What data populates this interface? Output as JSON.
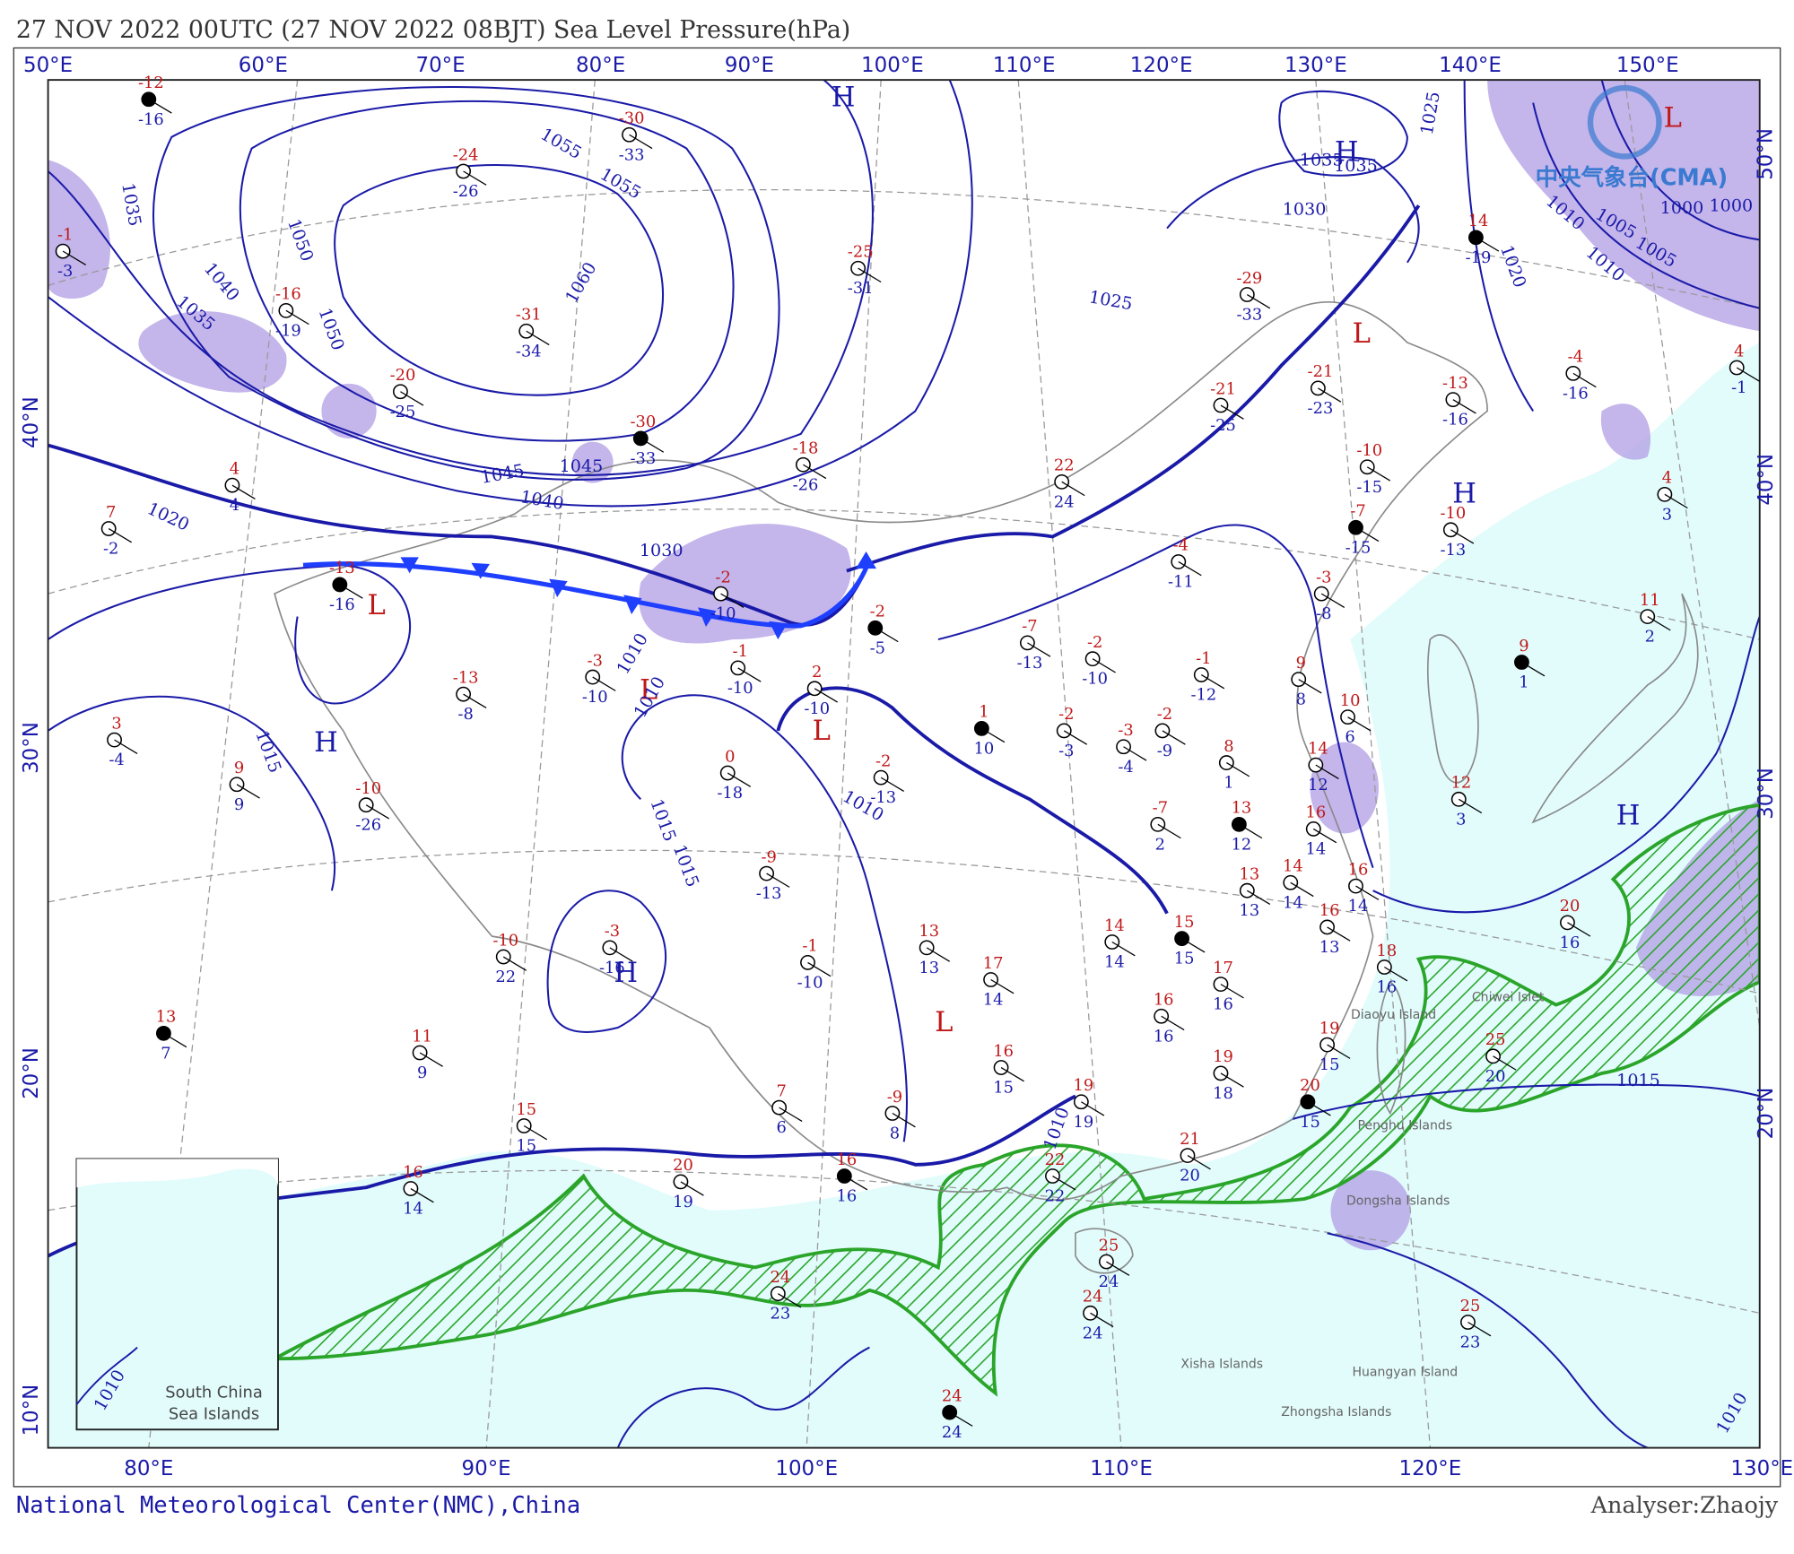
{
  "header": {
    "title": "27 NOV 2022 00UTC  (27 NOV 2022 08BJT) Sea Level Pressure(hPa)"
  },
  "top_axis": [
    "50°E",
    "60°E",
    "70°E",
    "80°E",
    "90°E",
    "100°E",
    "110°E",
    "120°E",
    "130°E",
    "140°E",
    "150°E"
  ],
  "bottom_axis": [
    "80°E",
    "90°E",
    "100°E",
    "110°E",
    "120°E",
    "130°E"
  ],
  "left_axis": [
    "40°N",
    "30°N",
    "20°N",
    "10°N"
  ],
  "right_axis": [
    "50°N",
    "40°N",
    "30°N",
    "20°N"
  ],
  "logo": "中央气象台(CMA)",
  "pressure_centers": [
    "H",
    "H",
    "H",
    "H",
    "H",
    "H",
    "L",
    "L",
    "L",
    "L",
    "L",
    "L"
  ],
  "isobar_labels": [
    "1060",
    "1055",
    "1055",
    "1050",
    "1050",
    "1040",
    "1035",
    "1035",
    "1045",
    "1045",
    "1040",
    "1030",
    "1020",
    "1015",
    "1010",
    "1010",
    "1015",
    "1015",
    "1010",
    "1010",
    "1025",
    "1030",
    "1035",
    "1035",
    "1025",
    "1020",
    "1015",
    "1010",
    "1010",
    "1005",
    "1005",
    "1000",
    "1000",
    "1010",
    "1010"
  ],
  "stations": [
    {
      "temp": -12,
      "dew": -16
    },
    {
      "temp": -1,
      "dew": -3
    },
    {
      "temp": -16,
      "dew": -19
    },
    {
      "temp": -20,
      "dew": -25
    },
    {
      "temp": -31,
      "dew": -34
    },
    {
      "temp": -30,
      "dew": -33
    },
    {
      "temp": -24,
      "dew": -26
    },
    {
      "temp": -30,
      "dew": -33
    },
    {
      "temp": -25,
      "dew": -31
    },
    {
      "temp": -18,
      "dew": -26
    },
    {
      "temp": 7,
      "dew": -2
    },
    {
      "temp": 4,
      "dew": 4
    },
    {
      "temp": 3,
      "dew": -4
    },
    {
      "temp": 9,
      "dew": 9
    },
    {
      "temp": -13,
      "dew": -16
    },
    {
      "temp": -13,
      "dew": -8
    },
    {
      "temp": -10,
      "dew": -26
    },
    {
      "temp": -3,
      "dew": -10
    },
    {
      "temp": -2,
      "dew": -10
    },
    {
      "temp": -1,
      "dew": -10
    },
    {
      "temp": 2,
      "dew": -10
    },
    {
      "temp": -2,
      "dew": -5
    },
    {
      "temp": 0,
      "dew": -18
    },
    {
      "temp": -2,
      "dew": -13
    },
    {
      "temp": -9,
      "dew": -13
    },
    {
      "temp": -1,
      "dew": -10
    },
    {
      "temp": -3,
      "dew": -16
    },
    {
      "temp": -10,
      "dew": 22
    },
    {
      "temp": 13,
      "dew": 7
    },
    {
      "temp": 11,
      "dew": 9
    },
    {
      "temp": 15,
      "dew": 15
    },
    {
      "temp": 16,
      "dew": 14
    },
    {
      "temp": 20,
      "dew": 19
    },
    {
      "temp": 7,
      "dew": 6
    },
    {
      "temp": -9,
      "dew": 8
    },
    {
      "temp": 16,
      "dew": 16
    },
    {
      "temp": 24,
      "dew": 23
    },
    {
      "temp": 13,
      "dew": 13
    },
    {
      "temp": 17,
      "dew": 14
    },
    {
      "temp": 16,
      "dew": 15
    },
    {
      "temp": -7,
      "dew": -13
    },
    {
      "temp": -2,
      "dew": -10
    },
    {
      "temp": 1,
      "dew": 10
    },
    {
      "temp": -2,
      "dew": -3
    },
    {
      "temp": -3,
      "dew": -4
    },
    {
      "temp": -2,
      "dew": -9
    },
    {
      "temp": -1,
      "dew": -12
    },
    {
      "temp": 8,
      "dew": 1
    },
    {
      "temp": -7,
      "dew": 2
    },
    {
      "temp": 13,
      "dew": 12
    },
    {
      "temp": 13,
      "dew": 13
    },
    {
      "temp": 14,
      "dew": 14
    },
    {
      "temp": 16,
      "dew": 14
    },
    {
      "temp": 16,
      "dew": 14
    },
    {
      "temp": 16,
      "dew": 13
    },
    {
      "temp": 18,
      "dew": 16
    },
    {
      "temp": 15,
      "dew": 15
    },
    {
      "temp": 14,
      "dew": 14
    },
    {
      "temp": 16,
      "dew": 16
    },
    {
      "temp": 17,
      "dew": 16
    },
    {
      "temp": 19,
      "dew": 18
    },
    {
      "temp": 19,
      "dew": 19
    },
    {
      "temp": 22,
      "dew": 22
    },
    {
      "temp": 20,
      "dew": 15
    },
    {
      "temp": 19,
      "dew": 15
    },
    {
      "temp": 21,
      "dew": 20
    },
    {
      "temp": 25,
      "dew": 24
    },
    {
      "temp": 24,
      "dew": 24
    },
    {
      "temp": 25,
      "dew": 23
    },
    {
      "temp": 12,
      "dew": 3
    },
    {
      "temp": 9,
      "dew": 1
    },
    {
      "temp": 11,
      "dew": 2
    },
    {
      "temp": 10,
      "dew": 6
    },
    {
      "temp": 9,
      "dew": 8
    },
    {
      "temp": 14,
      "dew": 12
    },
    {
      "temp": -4,
      "dew": -11
    },
    {
      "temp": -3,
      "dew": -8
    },
    {
      "temp": -7,
      "dew": -15
    },
    {
      "temp": -10,
      "dew": -15
    },
    {
      "temp": -10,
      "dew": -13
    },
    {
      "temp": -13,
      "dew": -16
    },
    {
      "temp": -4,
      "dew": -16
    },
    {
      "temp": 4,
      "dew": -1
    },
    {
      "temp": 4,
      "dew": 3
    },
    {
      "temp": 14,
      "dew": -19
    },
    {
      "temp": -29,
      "dew": -33
    },
    {
      "temp": -21,
      "dew": -23
    },
    {
      "temp": -21,
      "dew": -25
    },
    {
      "temp": 22,
      "dew": 24
    },
    {
      "temp": 20,
      "dew": 16
    },
    {
      "temp": 25,
      "dew": 20
    },
    {
      "temp": 24,
      "dew": 24
    }
  ],
  "islands": [
    "Chiwei Islet",
    "Diaoyu Island",
    "Penghu Islands",
    "Dongsha Islands",
    "Xisha Islands",
    "Huangyan Island",
    "Zhongsha Islands"
  ],
  "inset": {
    "title_lines": [
      "South China",
      "Sea Islands"
    ]
  },
  "footer": {
    "left": "National Meteorological Center(NMC),China",
    "right": "Analyser:Zhaojy"
  }
}
